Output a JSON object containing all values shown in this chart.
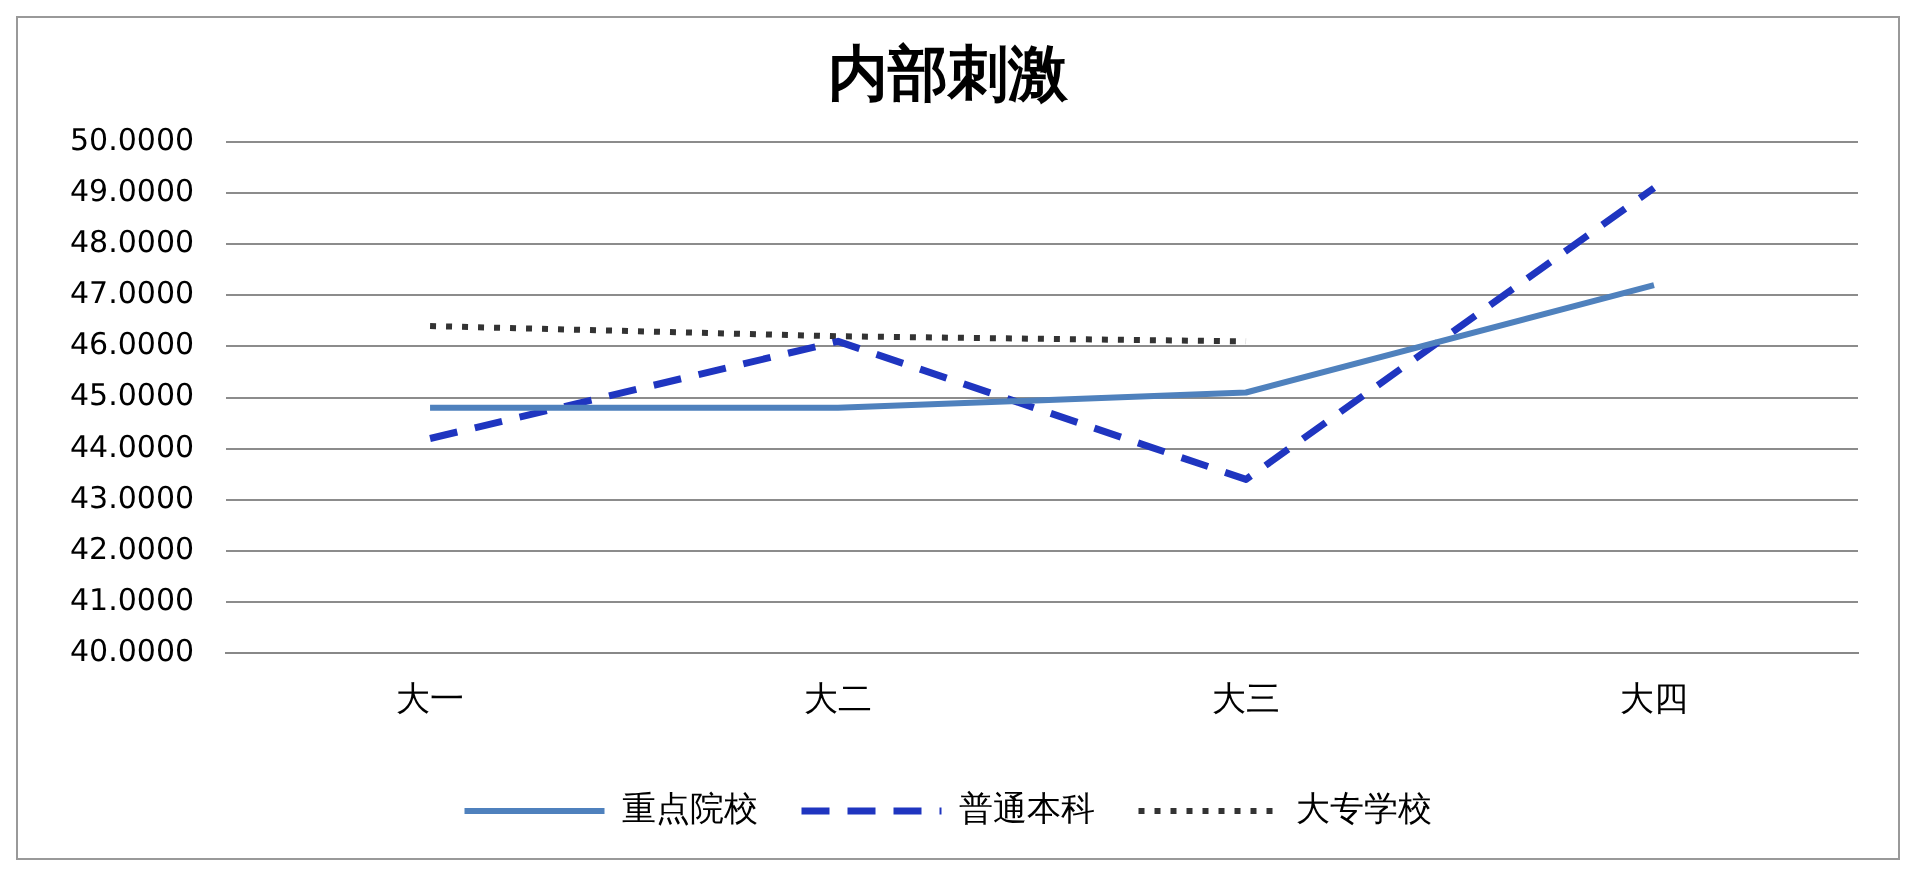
{
  "chart_data": {
    "type": "line",
    "title": "内部刺激",
    "categories": [
      "大一",
      "大二",
      "大三",
      "大四"
    ],
    "series": [
      {
        "name": "重点院校",
        "color": "#4f81bd",
        "values": [
          44.8,
          44.8,
          45.1,
          47.2
        ],
        "line_style": "solid"
      },
      {
        "name": "普通本科",
        "color": "#1f35c0",
        "values": [
          44.2,
          46.1,
          43.4,
          49.1
        ],
        "line_style": "dashed"
      },
      {
        "name": "大专学校",
        "color": "#333333",
        "values": [
          46.4,
          46.2,
          46.1,
          null
        ],
        "line_style": "dotted"
      }
    ],
    "ylim": [
      40,
      50
    ],
    "yticks": [
      {
        "value": 40,
        "label": "40.0000"
      },
      {
        "value": 41,
        "label": "41.0000"
      },
      {
        "value": 42,
        "label": "42.0000"
      },
      {
        "value": 43,
        "label": "43.0000"
      },
      {
        "value": 44,
        "label": "44.0000"
      },
      {
        "value": 45,
        "label": "45.0000"
      },
      {
        "value": 46,
        "label": "46.0000"
      },
      {
        "value": 47,
        "label": "47.0000"
      },
      {
        "value": 48,
        "label": "48.0000"
      },
      {
        "value": 49,
        "label": "49.0000"
      },
      {
        "value": 50,
        "label": "50.0000"
      }
    ],
    "grid": "y",
    "legend": "bottom",
    "marker": "none"
  }
}
